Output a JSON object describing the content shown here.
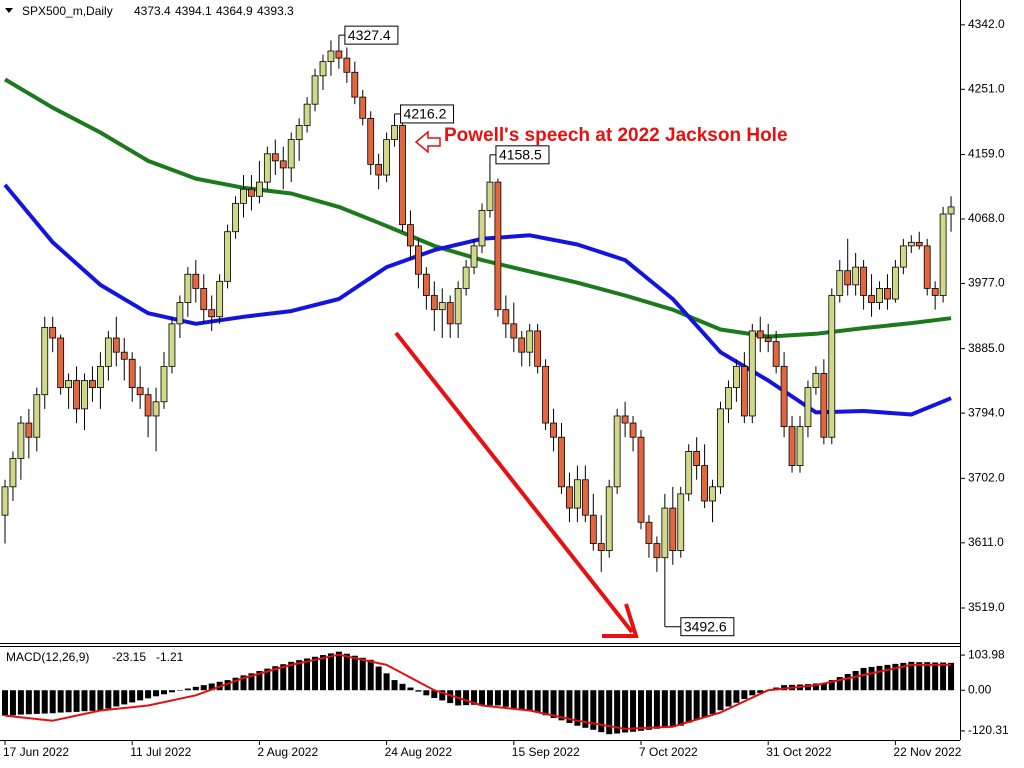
{
  "chart_data": [
    {
      "type": "candlestick",
      "title": "SPX500_m,Daily",
      "header_ohlc": [
        4373.4,
        4394.1,
        4364.9,
        4393.3
      ],
      "up_color": "#d2d88a",
      "down_color": "#e2673f",
      "annotation": "Powell's speech at 2022 Jackson Hole",
      "ylim": [
        3469.6,
        4377.0
      ],
      "yticks": [
        {
          "value": 4342,
          "label": "4342.0"
        },
        {
          "value": 4251,
          "label": "4251.0"
        },
        {
          "value": 4159,
          "label": "4159.0"
        },
        {
          "value": 4068,
          "label": "4068.0"
        },
        {
          "value": 3977,
          "label": "3977.0"
        },
        {
          "value": 3885,
          "label": "3885.0"
        },
        {
          "value": 3794,
          "label": "3794.0"
        },
        {
          "value": 3702,
          "label": "3702.0"
        },
        {
          "value": 3611,
          "label": "3611.0"
        },
        {
          "value": 3519,
          "label": "3519.0"
        }
      ],
      "categories": [
        "17 Jun 2022",
        null,
        null,
        null,
        null,
        null,
        null,
        null,
        null,
        null,
        null,
        null,
        null,
        null,
        null,
        null,
        "11 Jul 2022",
        null,
        null,
        null,
        null,
        null,
        null,
        null,
        null,
        null,
        null,
        null,
        null,
        null,
        null,
        null,
        "2 Aug 2022",
        null,
        null,
        null,
        null,
        null,
        null,
        null,
        null,
        null,
        null,
        null,
        null,
        null,
        null,
        null,
        "24 Aug 2022",
        null,
        null,
        null,
        null,
        null,
        null,
        null,
        null,
        null,
        null,
        null,
        null,
        null,
        null,
        null,
        "15 Sep 2022",
        null,
        null,
        null,
        null,
        null,
        null,
        null,
        null,
        null,
        null,
        null,
        null,
        null,
        null,
        null,
        "7 Oct 2022",
        null,
        null,
        null,
        null,
        null,
        null,
        null,
        null,
        null,
        null,
        null,
        null,
        null,
        null,
        null,
        "31 Oct 2022",
        null,
        null,
        null,
        null,
        null,
        null,
        null,
        null,
        null,
        null,
        null,
        null,
        null,
        null,
        null,
        "22 Nov 2022",
        null,
        null,
        null,
        null,
        null,
        null,
        null
      ],
      "candles": [
        [
          3650,
          3700,
          3610,
          3690
        ],
        [
          3690,
          3740,
          3670,
          3730
        ],
        [
          3730,
          3790,
          3700,
          3780
        ],
        [
          3780,
          3800,
          3730,
          3760
        ],
        [
          3760,
          3830,
          3740,
          3820
        ],
        [
          3820,
          3930,
          3800,
          3915
        ],
        [
          3915,
          3930,
          3880,
          3900
        ],
        [
          3900,
          3905,
          3820,
          3830
        ],
        [
          3830,
          3850,
          3800,
          3840
        ],
        [
          3840,
          3860,
          3780,
          3800
        ],
        [
          3800,
          3850,
          3770,
          3840
        ],
        [
          3840,
          3860,
          3810,
          3830
        ],
        [
          3830,
          3880,
          3800,
          3860
        ],
        [
          3860,
          3910,
          3840,
          3900
        ],
        [
          3900,
          3930,
          3860,
          3880
        ],
        [
          3880,
          3900,
          3840,
          3870
        ],
        [
          3870,
          3880,
          3810,
          3830
        ],
        [
          3830,
          3860,
          3800,
          3820
        ],
        [
          3820,
          3830,
          3760,
          3790
        ],
        [
          3790,
          3830,
          3740,
          3810
        ],
        [
          3810,
          3880,
          3800,
          3860
        ],
        [
          3860,
          3930,
          3850,
          3920
        ],
        [
          3920,
          3960,
          3900,
          3950
        ],
        [
          3950,
          4000,
          3930,
          3990
        ],
        [
          3990,
          4010,
          3950,
          3970
        ],
        [
          3970,
          3990,
          3920,
          3940
        ],
        [
          3940,
          3960,
          3910,
          3930
        ],
        [
          3930,
          3990,
          3920,
          3980
        ],
        [
          3980,
          4060,
          3970,
          4050
        ],
        [
          4050,
          4100,
          4040,
          4090
        ],
        [
          4090,
          4130,
          4070,
          4110
        ],
        [
          4110,
          4130,
          4080,
          4100
        ],
        [
          4100,
          4150,
          4090,
          4120
        ],
        [
          4120,
          4170,
          4110,
          4160
        ],
        [
          4160,
          4180,
          4130,
          4150
        ],
        [
          4150,
          4170,
          4110,
          4140
        ],
        [
          4140,
          4190,
          4120,
          4180
        ],
        [
          4180,
          4210,
          4150,
          4200
        ],
        [
          4200,
          4240,
          4190,
          4230
        ],
        [
          4230,
          4280,
          4220,
          4270
        ],
        [
          4270,
          4300,
          4250,
          4290
        ],
        [
          4290,
          4320,
          4270,
          4305
        ],
        [
          4305,
          4327.4,
          4280,
          4295
        ],
        [
          4295,
          4310,
          4260,
          4275
        ],
        [
          4275,
          4290,
          4230,
          4240
        ],
        [
          4240,
          4250,
          4200,
          4210
        ],
        [
          4210,
          4220,
          4130,
          4145
        ],
        [
          4145,
          4160,
          4110,
          4130
        ],
        [
          4130,
          4190,
          4120,
          4180
        ],
        [
          4180,
          4216.2,
          4170,
          4200
        ],
        [
          4200,
          4205,
          4050,
          4060
        ],
        [
          4060,
          4080,
          4010,
          4030
        ],
        [
          4030,
          4040,
          3970,
          3990
        ],
        [
          3990,
          4000,
          3940,
          3960
        ],
        [
          3960,
          3980,
          3910,
          3940
        ],
        [
          3940,
          3970,
          3900,
          3950
        ],
        [
          3950,
          3960,
          3900,
          3920
        ],
        [
          3920,
          3980,
          3900,
          3970
        ],
        [
          3970,
          4010,
          3960,
          4000
        ],
        [
          4000,
          4040,
          3990,
          4030
        ],
        [
          4030,
          4090,
          4020,
          4080
        ],
        [
          4080,
          4158.5,
          4070,
          4120
        ],
        [
          4120,
          4125,
          3930,
          3940
        ],
        [
          3940,
          3960,
          3900,
          3920
        ],
        [
          3920,
          3950,
          3880,
          3900
        ],
        [
          3900,
          3910,
          3860,
          3880
        ],
        [
          3880,
          3920,
          3860,
          3910
        ],
        [
          3910,
          3920,
          3850,
          3860
        ],
        [
          3860,
          3870,
          3770,
          3780
        ],
        [
          3780,
          3800,
          3740,
          3760
        ],
        [
          3760,
          3780,
          3680,
          3690
        ],
        [
          3690,
          3710,
          3640,
          3660
        ],
        [
          3660,
          3720,
          3640,
          3700
        ],
        [
          3700,
          3720,
          3640,
          3650
        ],
        [
          3650,
          3680,
          3600,
          3610
        ],
        [
          3610,
          3650,
          3570,
          3600
        ],
        [
          3600,
          3700,
          3590,
          3690
        ],
        [
          3690,
          3800,
          3680,
          3790
        ],
        [
          3790,
          3810,
          3760,
          3780
        ],
        [
          3780,
          3790,
          3740,
          3760
        ],
        [
          3760,
          3770,
          3630,
          3640
        ],
        [
          3640,
          3650,
          3590,
          3610
        ],
        [
          3610,
          3620,
          3570,
          3590
        ],
        [
          3590,
          3680,
          3492.6,
          3660
        ],
        [
          3660,
          3690,
          3580,
          3600
        ],
        [
          3600,
          3690,
          3590,
          3680
        ],
        [
          3680,
          3750,
          3670,
          3740
        ],
        [
          3740,
          3760,
          3700,
          3720
        ],
        [
          3720,
          3750,
          3660,
          3670
        ],
        [
          3670,
          3700,
          3640,
          3690
        ],
        [
          3690,
          3810,
          3680,
          3800
        ],
        [
          3800,
          3840,
          3780,
          3830
        ],
        [
          3830,
          3870,
          3810,
          3860
        ],
        [
          3860,
          3880,
          3780,
          3790
        ],
        [
          3790,
          3920,
          3780,
          3910
        ],
        [
          3910,
          3930,
          3880,
          3900
        ],
        [
          3900,
          3920,
          3880,
          3895
        ],
        [
          3895,
          3910,
          3850,
          3860
        ],
        [
          3860,
          3880,
          3760,
          3775
        ],
        [
          3775,
          3790,
          3710,
          3720
        ],
        [
          3720,
          3790,
          3710,
          3775
        ],
        [
          3775,
          3840,
          3760,
          3830
        ],
        [
          3830,
          3860,
          3820,
          3850
        ],
        [
          3850,
          3870,
          3750,
          3760
        ],
        [
          3760,
          3970,
          3750,
          3960
        ],
        [
          3960,
          4010,
          3950,
          3995
        ],
        [
          3995,
          4040,
          3960,
          3975
        ],
        [
          3975,
          4020,
          3960,
          4000
        ],
        [
          4000,
          4010,
          3940,
          3960
        ],
        [
          3960,
          3990,
          3930,
          3950
        ],
        [
          3950,
          3980,
          3940,
          3970
        ],
        [
          3970,
          3990,
          3940,
          3955
        ],
        [
          3955,
          4010,
          3950,
          4000
        ],
        [
          4000,
          4040,
          3990,
          4030
        ],
        [
          4030,
          4045,
          4020,
          4035
        ],
        [
          4035,
          4050,
          4025,
          4030
        ],
        [
          4030,
          4040,
          3960,
          3970
        ],
        [
          3970,
          3980,
          3940,
          3960
        ],
        [
          3960,
          4085,
          3950,
          4075
        ],
        [
          4075,
          4100,
          4050,
          4085
        ]
      ],
      "series": [
        {
          "color": "#1b7a1b",
          "x": [
            0,
            6,
            12,
            18,
            24,
            30,
            36,
            42,
            48,
            54,
            60,
            66,
            72,
            78,
            84,
            90,
            96,
            102,
            108,
            114,
            119
          ],
          "values": [
            4265,
            4225,
            4190,
            4150,
            4125,
            4112,
            4104,
            4085,
            4058,
            4030,
            4010,
            3994,
            3978,
            3960,
            3940,
            3912,
            3902,
            3906,
            3914,
            3921,
            3928
          ]
        },
        {
          "color": "#1414e0",
          "x": [
            0,
            6,
            12,
            18,
            24,
            30,
            36,
            42,
            48,
            54,
            60,
            66,
            72,
            78,
            84,
            90,
            96,
            102,
            108,
            114,
            119
          ],
          "values": [
            4116,
            4035,
            3975,
            3935,
            3920,
            3930,
            3938,
            3955,
            4000,
            4024,
            4040,
            4045,
            4032,
            4010,
            3955,
            3880,
            3840,
            3795,
            3797,
            3792,
            3815
          ]
        }
      ]
    },
    {
      "type": "bar",
      "title": "MACD(12,26,9)",
      "header_values": [
        -23.15,
        -1.21
      ],
      "color": "#000000",
      "ylim": [
        -147.2,
        127.9
      ],
      "yticks": [
        103.98,
        {
          "value": 0,
          "label": "0.00"
        },
        -120.31
      ],
      "values": [
        -75,
        -74,
        -72,
        -71,
        -70,
        -69,
        -68,
        -66,
        -65,
        -64,
        -62,
        -61,
        -60,
        -54,
        -48,
        -42,
        -36,
        -30,
        -24,
        -18,
        -12,
        -6,
        0,
        5,
        10,
        15,
        20,
        25,
        30,
        37,
        44,
        50,
        57,
        64,
        71,
        77,
        84,
        89,
        94,
        99,
        104,
        109,
        114,
        108,
        102,
        96,
        90,
        70,
        50,
        30,
        19,
        8,
        -4,
        -15,
        -23,
        -30,
        -38,
        -45,
        -44,
        -43,
        -44,
        -45,
        -45,
        -49,
        -53,
        -58,
        -62,
        -66,
        -74,
        -82,
        -89,
        -97,
        -105,
        -111,
        -117,
        -124,
        -130,
        -128,
        -125,
        -123,
        -120,
        -117,
        -114,
        -111,
        -108,
        -105,
        -96,
        -88,
        -79,
        -70,
        -59,
        -48,
        -37,
        -26,
        -15,
        -8,
        0,
        8,
        15,
        16,
        17,
        18,
        20,
        21,
        30,
        39,
        48,
        57,
        66,
        69,
        72,
        75,
        78,
        81,
        84,
        83,
        83,
        82,
        82,
        81
      ],
      "series": [
        {
          "color": "#e01010",
          "x": [
            0,
            6,
            12,
            18,
            24,
            30,
            36,
            42,
            48,
            54,
            60,
            66,
            72,
            78,
            84,
            90,
            96,
            102,
            108,
            114,
            119
          ],
          "values": [
            -75,
            -90,
            -60,
            -45,
            -15,
            36,
            75,
            105,
            75,
            0,
            -45,
            -60,
            -90,
            -114,
            -108,
            -66,
            0,
            15,
            45,
            75,
            75
          ]
        }
      ]
    }
  ]
}
